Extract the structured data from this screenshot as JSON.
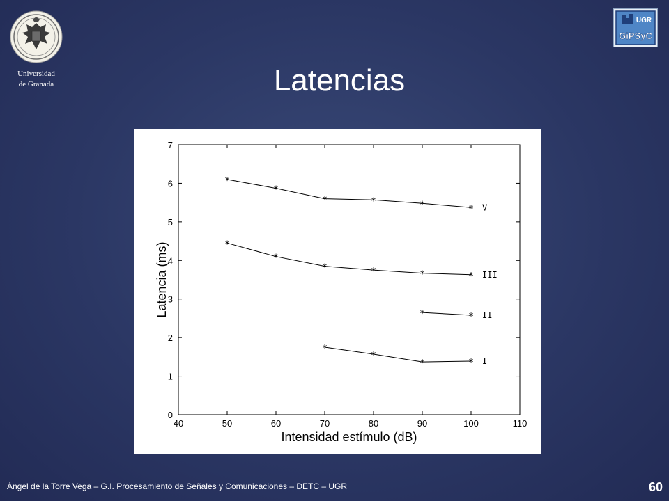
{
  "header": {
    "university_line1": "Universidad",
    "university_line2": "de Granada",
    "logo_text_top": "UGR",
    "logo_text_bottom": "GiPSyC",
    "title": "Latencias"
  },
  "footer": {
    "text": "Ángel de la Torre Vega – G.I. Procesamiento de Señales y Comunicaciones – DETC – UGR",
    "page_number": "60"
  },
  "colors": {
    "background": "#2b3764",
    "text": "#ffffff",
    "plot_line": "#000000"
  },
  "chart_data": {
    "type": "line",
    "title": "",
    "xlabel": "Intensidad estímulo (dB)",
    "ylabel": "Latencia (ms)",
    "xlim": [
      40,
      110
    ],
    "ylim": [
      0,
      7
    ],
    "xticks": [
      "40",
      "50",
      "60",
      "70",
      "80",
      "90",
      "100",
      "110"
    ],
    "yticks": [
      "0",
      "1",
      "2",
      "3",
      "4",
      "5",
      "6",
      "7"
    ],
    "grid": false,
    "marker": "*",
    "series": [
      {
        "name": "V",
        "x": [
          50,
          60,
          70,
          80,
          90,
          100
        ],
        "y": [
          6.1,
          5.87,
          5.6,
          5.57,
          5.48,
          5.37
        ]
      },
      {
        "name": "III",
        "x": [
          50,
          60,
          70,
          80,
          90,
          100
        ],
        "y": [
          4.45,
          4.1,
          3.85,
          3.75,
          3.67,
          3.63
        ]
      },
      {
        "name": "II",
        "x": [
          90,
          100
        ],
        "y": [
          2.65,
          2.58
        ]
      },
      {
        "name": "I",
        "x": [
          70,
          80,
          90,
          100
        ],
        "y": [
          1.75,
          1.57,
          1.37,
          1.39
        ]
      }
    ]
  }
}
